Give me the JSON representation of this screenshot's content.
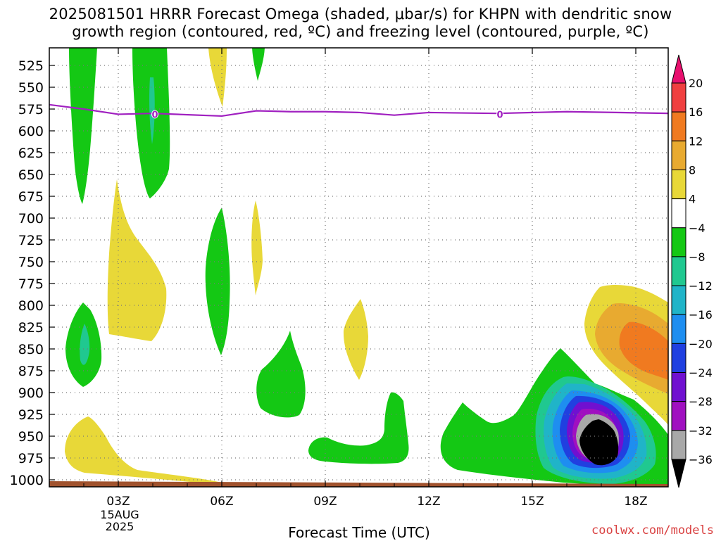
{
  "title_line1": "2025081501 HRRR Forecast Omega (shaded, μbar/s) for KHPN with dendritic snow",
  "title_line2": "growth region (contoured, red, ºC) and freezing level (contoured, purple, ºC)",
  "credit": "coolwx.com/models",
  "chart_data": {
    "type": "heatmap",
    "xlabel": "Forecast Time (UTC)",
    "ylabel": "",
    "x_ticks": [
      "03Z",
      "06Z",
      "09Z",
      "12Z",
      "15Z",
      "18Z"
    ],
    "x_date_lines": [
      "15AUG",
      "2025"
    ],
    "y_ticks": [
      525,
      550,
      575,
      600,
      625,
      650,
      675,
      700,
      725,
      750,
      775,
      800,
      825,
      850,
      875,
      900,
      925,
      950,
      975,
      1000
    ],
    "y_axis_inverted": true,
    "y_scale": "log-pressure",
    "grid": true,
    "colorbar": {
      "labels": [
        "20",
        "16",
        "12",
        "8",
        "4",
        "-4",
        "-8",
        "-12",
        "-16",
        "-20",
        "-24",
        "-28",
        "-32",
        "-36"
      ],
      "colors": [
        "#e8106e",
        "#f04040",
        "#f07a20",
        "#e8aa30",
        "#e8d838",
        "#ffffff",
        "#14c814",
        "#20c890",
        "#20b4c8",
        "#1e8ef0",
        "#2040e0",
        "#7010d0",
        "#a010c0",
        "#a8a8a8",
        "#000000"
      ]
    },
    "freezing_level": {
      "color": "#a020c0",
      "label": "0",
      "points": [
        [
          1,
          570
        ],
        [
          2,
          575
        ],
        [
          3,
          581
        ],
        [
          4,
          580
        ],
        [
          6,
          583
        ],
        [
          7,
          577
        ],
        [
          8,
          578
        ],
        [
          9,
          578
        ],
        [
          10,
          579
        ],
        [
          11,
          582
        ],
        [
          12,
          579
        ],
        [
          14,
          580
        ],
        [
          16,
          578
        ],
        [
          19,
          580
        ]
      ]
    },
    "omega_regions": [
      {
        "level": "-4",
        "color": "#14c814",
        "description": "upper column 02Z"
      },
      {
        "level": "-4",
        "color": "#14c814",
        "description": "upper column 04Z"
      },
      {
        "level": "-12",
        "color": "#20c890",
        "description": "core 04Z"
      },
      {
        "level": "4",
        "color": "#e8d838",
        "description": "upper 06Z"
      },
      {
        "level": "-4",
        "color": "#14c814",
        "description": "upper 07Z"
      },
      {
        "level": "4",
        "color": "#e8d838",
        "description": "mid 03Z"
      },
      {
        "level": "-4",
        "color": "#14c814",
        "description": "mid 06Z"
      },
      {
        "level": "4",
        "color": "#e8d838",
        "description": "mid 07Z"
      },
      {
        "level": "-4",
        "color": "#14c814",
        "description": "low 02Z"
      },
      {
        "level": "-8",
        "color": "#20c890",
        "description": "low core 02Z"
      },
      {
        "level": "-4",
        "color": "#14c814",
        "description": "low 08Z"
      },
      {
        "level": "4",
        "color": "#e8d838",
        "description": "low 10Z"
      },
      {
        "level": "4",
        "color": "#e8d838",
        "description": "surface 02-06Z"
      },
      {
        "level": "-4",
        "color": "#14c814",
        "description": "surface 09-11Z"
      },
      {
        "level": "-4",
        "color": "#14c814",
        "description": "surface 13-19Z"
      },
      {
        "level": "-36",
        "color": "#000000",
        "description": "strong ascent 17Z 950mb"
      },
      {
        "level": "8",
        "color": "#f07a20",
        "description": "descent 18-19Z 800mb"
      }
    ]
  }
}
